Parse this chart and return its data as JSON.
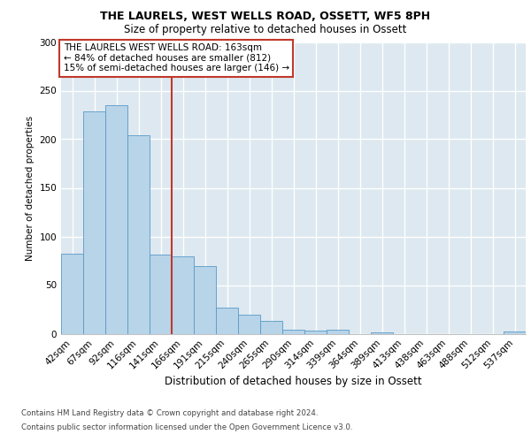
{
  "title1": "THE LAURELS, WEST WELLS ROAD, OSSETT, WF5 8PH",
  "title2": "Size of property relative to detached houses in Ossett",
  "xlabel": "Distribution of detached houses by size in Ossett",
  "ylabel": "Number of detached properties",
  "bin_labels": [
    "42sqm",
    "67sqm",
    "92sqm",
    "116sqm",
    "141sqm",
    "166sqm",
    "191sqm",
    "215sqm",
    "240sqm",
    "265sqm",
    "290sqm",
    "314sqm",
    "339sqm",
    "364sqm",
    "389sqm",
    "413sqm",
    "438sqm",
    "463sqm",
    "488sqm",
    "512sqm",
    "537sqm"
  ],
  "bin_values": [
    82,
    229,
    235,
    204,
    81,
    80,
    70,
    27,
    20,
    13,
    4,
    3,
    4,
    0,
    1,
    0,
    0,
    0,
    0,
    0,
    2
  ],
  "bar_color": "#b8d4e8",
  "bar_edge_color": "#5899c8",
  "annotation_title": "THE LAURELS WEST WELLS ROAD: 163sqm",
  "annotation_line1": "← 84% of detached houses are smaller (812)",
  "annotation_line2": "15% of semi-detached houses are larger (146) →",
  "vline_color": "#c0392b",
  "annotation_box_edge_color": "#c0392b",
  "ylim": [
    0,
    300
  ],
  "vline_bin": 5,
  "footer1": "Contains HM Land Registry data © Crown copyright and database right 2024.",
  "footer2": "Contains public sector information licensed under the Open Government Licence v3.0.",
  "bg_color": "#dde8f0",
  "grid_color": "#ffffff"
}
